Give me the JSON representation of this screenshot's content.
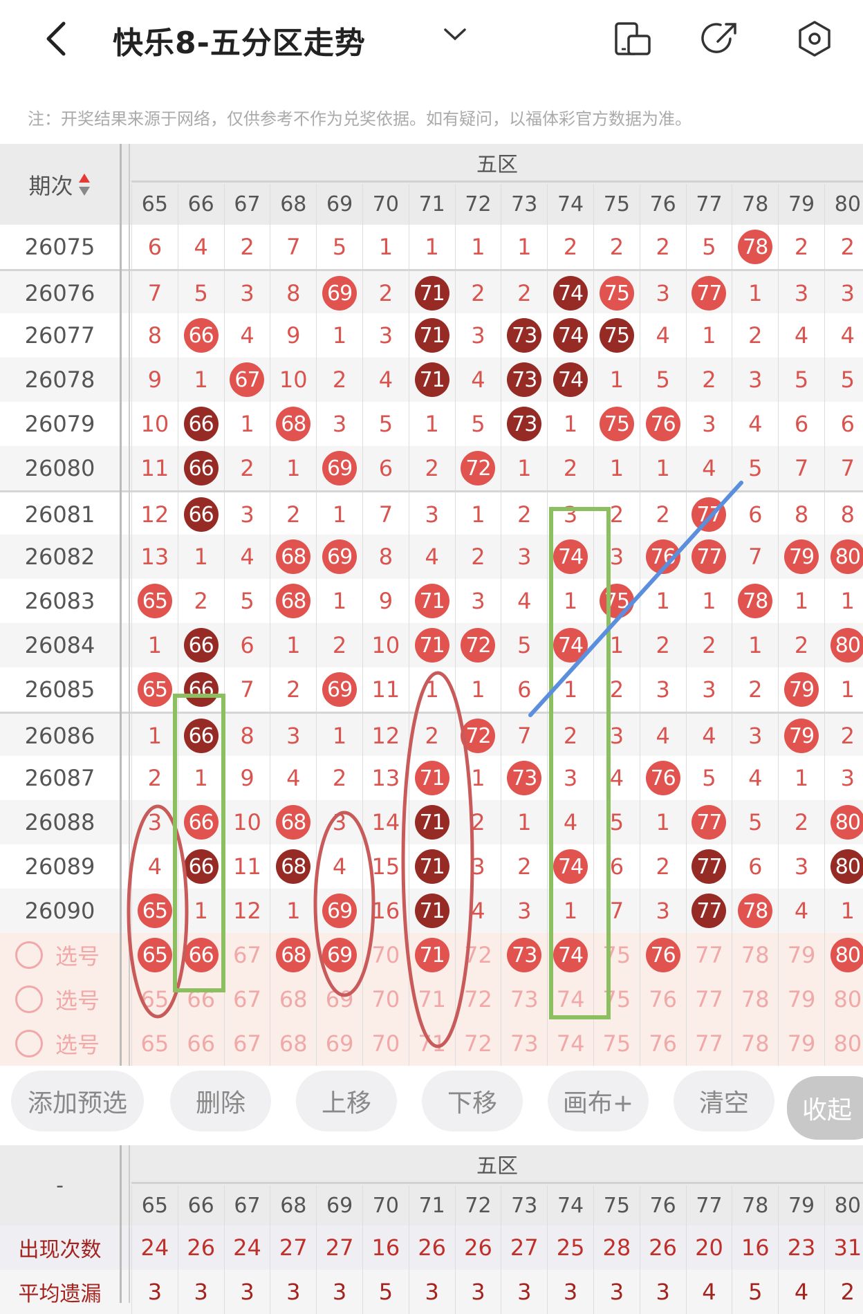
{
  "header": {
    "title": "快乐8-五分区走势",
    "back_icon": "chevron-left-icon",
    "dropdown_icon": "chevron-down-icon",
    "icons": [
      "phone-layout-icon",
      "share-icon",
      "settings-hexagon-icon"
    ]
  },
  "note": "注：开奖结果来源于网络，仅供参考不作为兑奖依据。如有疑问，以福体彩官方数据为准。",
  "table": {
    "period_header": "期次",
    "zone_label": "五区",
    "columns": [
      "65",
      "66",
      "67",
      "68",
      "69",
      "70",
      "71",
      "72",
      "73",
      "74",
      "75",
      "76",
      "77",
      "78",
      "79",
      "80"
    ],
    "rows": [
      {
        "period": "26075",
        "cells": [
          "6",
          "4",
          "2",
          "7",
          "5",
          "1",
          "1",
          "1",
          "1",
          "2",
          "2",
          "2",
          "5",
          "78",
          "2",
          "2"
        ],
        "hits": [
          "78"
        ],
        "repeat_hits": []
      },
      {
        "period": "26076",
        "cells": [
          "7",
          "5",
          "3",
          "8",
          "69",
          "2",
          "71",
          "2",
          "2",
          "74",
          "75",
          "3",
          "77",
          "1",
          "3",
          "3"
        ],
        "hits": [
          "69",
          "75",
          "77"
        ],
        "repeat_hits": [
          "71",
          "74"
        ]
      },
      {
        "period": "26077",
        "cells": [
          "8",
          "66",
          "4",
          "9",
          "1",
          "3",
          "71",
          "3",
          "73",
          "74",
          "75",
          "4",
          "1",
          "2",
          "4",
          "4"
        ],
        "hits": [
          "66"
        ],
        "repeat_hits": [
          "71",
          "73",
          "74",
          "75"
        ]
      },
      {
        "period": "26078",
        "cells": [
          "9",
          "1",
          "67",
          "10",
          "2",
          "4",
          "71",
          "4",
          "73",
          "74",
          "1",
          "5",
          "2",
          "3",
          "5",
          "5"
        ],
        "hits": [
          "67"
        ],
        "repeat_hits": [
          "71",
          "73",
          "74"
        ]
      },
      {
        "period": "26079",
        "cells": [
          "10",
          "66",
          "1",
          "68",
          "3",
          "5",
          "1",
          "5",
          "73",
          "1",
          "75",
          "76",
          "3",
          "4",
          "6",
          "6"
        ],
        "hits": [
          "68",
          "75",
          "76"
        ],
        "repeat_hits": [
          "66",
          "73"
        ]
      },
      {
        "period": "26080",
        "cells": [
          "11",
          "66",
          "2",
          "1",
          "69",
          "6",
          "2",
          "72",
          "1",
          "2",
          "1",
          "1",
          "4",
          "5",
          "7",
          "7"
        ],
        "hits": [
          "69",
          "72"
        ],
        "repeat_hits": [
          "66"
        ]
      },
      {
        "period": "26081",
        "cells": [
          "12",
          "66",
          "3",
          "2",
          "1",
          "7",
          "3",
          "1",
          "2",
          "3",
          "2",
          "2",
          "77",
          "6",
          "8",
          "8"
        ],
        "hits": [
          "77"
        ],
        "repeat_hits": [
          "66"
        ]
      },
      {
        "period": "26082",
        "cells": [
          "13",
          "1",
          "4",
          "68",
          "69",
          "8",
          "4",
          "2",
          "3",
          "74",
          "3",
          "76",
          "77",
          "7",
          "79",
          "80"
        ],
        "hits": [
          "68",
          "69",
          "74",
          "76",
          "77",
          "79",
          "80"
        ],
        "repeat_hits": []
      },
      {
        "period": "26083",
        "cells": [
          "65",
          "2",
          "5",
          "68",
          "1",
          "9",
          "71",
          "3",
          "4",
          "1",
          "75",
          "1",
          "1",
          "78",
          "1",
          "1"
        ],
        "hits": [
          "65",
          "68",
          "71",
          "75",
          "78"
        ],
        "repeat_hits": []
      },
      {
        "period": "26084",
        "cells": [
          "1",
          "66",
          "6",
          "1",
          "2",
          "10",
          "71",
          "72",
          "5",
          "74",
          "1",
          "2",
          "2",
          "1",
          "2",
          "80"
        ],
        "hits": [
          "71",
          "72",
          "74",
          "80"
        ],
        "repeat_hits": [
          "66"
        ]
      },
      {
        "period": "26085",
        "cells": [
          "65",
          "66",
          "7",
          "2",
          "69",
          "11",
          "1",
          "1",
          "6",
          "1",
          "2",
          "3",
          "3",
          "2",
          "79",
          "1"
        ],
        "hits": [
          "65",
          "69",
          "79"
        ],
        "repeat_hits": [
          "66"
        ]
      },
      {
        "period": "26086",
        "cells": [
          "1",
          "66",
          "8",
          "3",
          "1",
          "12",
          "2",
          "72",
          "7",
          "2",
          "3",
          "4",
          "4",
          "3",
          "79",
          "2"
        ],
        "hits": [
          "72",
          "79"
        ],
        "repeat_hits": [
          "66"
        ]
      },
      {
        "period": "26087",
        "cells": [
          "2",
          "1",
          "9",
          "4",
          "2",
          "13",
          "71",
          "1",
          "73",
          "3",
          "4",
          "76",
          "5",
          "4",
          "1",
          "3"
        ],
        "hits": [
          "71",
          "73",
          "76"
        ],
        "repeat_hits": []
      },
      {
        "period": "26088",
        "cells": [
          "3",
          "66",
          "10",
          "68",
          "3",
          "14",
          "71",
          "2",
          "1",
          "4",
          "5",
          "1",
          "77",
          "5",
          "2",
          "80"
        ],
        "hits": [
          "66",
          "68",
          "77",
          "80"
        ],
        "repeat_hits": [
          "71"
        ]
      },
      {
        "period": "26089",
        "cells": [
          "4",
          "66",
          "11",
          "68",
          "4",
          "15",
          "71",
          "3",
          "2",
          "74",
          "6",
          "2",
          "77",
          "6",
          "3",
          "80"
        ],
        "hits": [
          "74"
        ],
        "repeat_hits": [
          "66",
          "68",
          "71",
          "77",
          "80"
        ]
      },
      {
        "period": "26090",
        "cells": [
          "65",
          "1",
          "12",
          "1",
          "69",
          "16",
          "71",
          "4",
          "3",
          "1",
          "7",
          "3",
          "77",
          "78",
          "4",
          "1"
        ],
        "hits": [
          "65",
          "69",
          "78"
        ],
        "repeat_hits": [
          "71",
          "77"
        ]
      }
    ],
    "select_rows": [
      {
        "label": "选号",
        "selected": [
          "65",
          "66",
          "68",
          "69",
          "71",
          "73",
          "74",
          "76",
          "80"
        ]
      },
      {
        "label": "选号",
        "selected": []
      },
      {
        "label": "选号",
        "selected": []
      }
    ]
  },
  "toolbar": {
    "buttons": [
      "添加预选",
      "删除",
      "上移",
      "下移",
      "画布+",
      "清空",
      "收起"
    ]
  },
  "stats": {
    "corner_label": "-",
    "zone_label": "五区",
    "columns": [
      "65",
      "66",
      "67",
      "68",
      "69",
      "70",
      "71",
      "72",
      "73",
      "74",
      "75",
      "76",
      "77",
      "78",
      "79",
      "80"
    ],
    "rows": [
      {
        "label": "出现次数",
        "values": [
          "24",
          "26",
          "24",
          "27",
          "27",
          "16",
          "26",
          "26",
          "27",
          "25",
          "28",
          "26",
          "20",
          "16",
          "23",
          "31"
        ]
      },
      {
        "label": "平均遗漏",
        "values": [
          "3",
          "3",
          "3",
          "3",
          "3",
          "5",
          "3",
          "3",
          "3",
          "3",
          "3",
          "3",
          "4",
          "5",
          "4",
          "2"
        ]
      }
    ]
  },
  "colors": {
    "hit": "#e0534e",
    "repeat_hit": "#962a24",
    "miss_text": "#d9534f",
    "select_bg": "#fbeee8",
    "ellipse": "#c85a5a",
    "box": "#8cbf5f",
    "line": "#5b8fde"
  }
}
